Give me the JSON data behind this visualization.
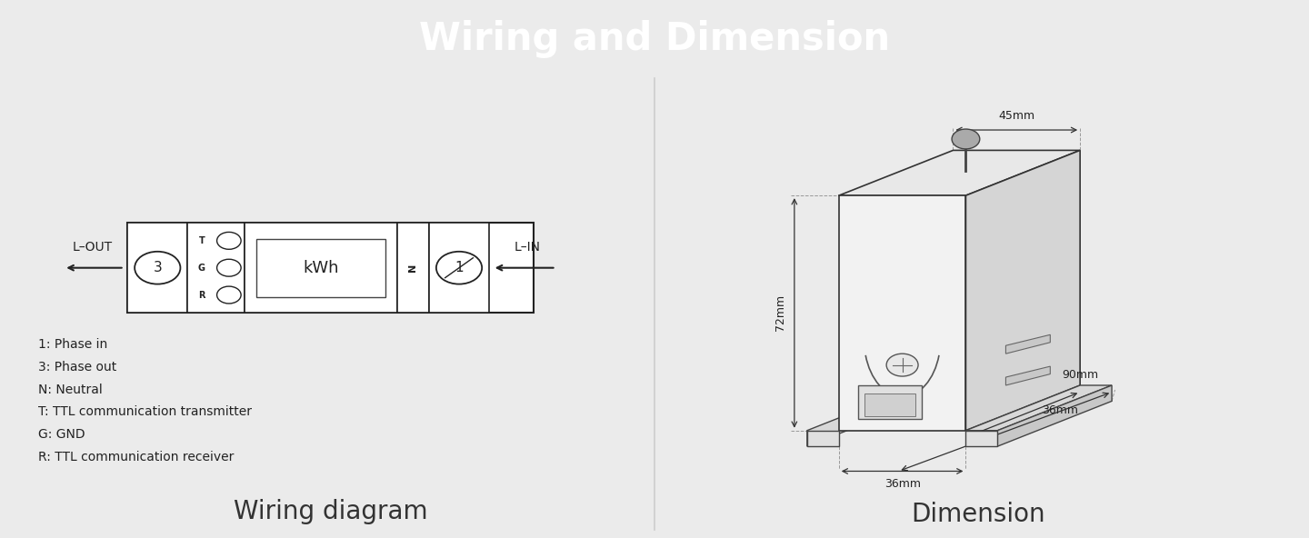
{
  "title": "Wiring and Dimension",
  "title_bg": "#7a7a7a",
  "title_color": "#ffffff",
  "title_fontsize": 30,
  "panel_bg": "#ebebeb",
  "content_bg": "#ffffff",
  "divider_color": "#cccccc",
  "left_title": "Wiring diagram",
  "right_title": "Dimension",
  "legend_lines": [
    "1: Phase in",
    "3: Phase out",
    "N: Neutral",
    "T: TTL communication transmitter",
    "G: GND",
    "R: TTL communication receiver"
  ],
  "dim_labels": {
    "top": "45mm",
    "height": "72mm",
    "bottom_left": "36mm",
    "bottom_right": "36mm",
    "depth": "90mm"
  }
}
